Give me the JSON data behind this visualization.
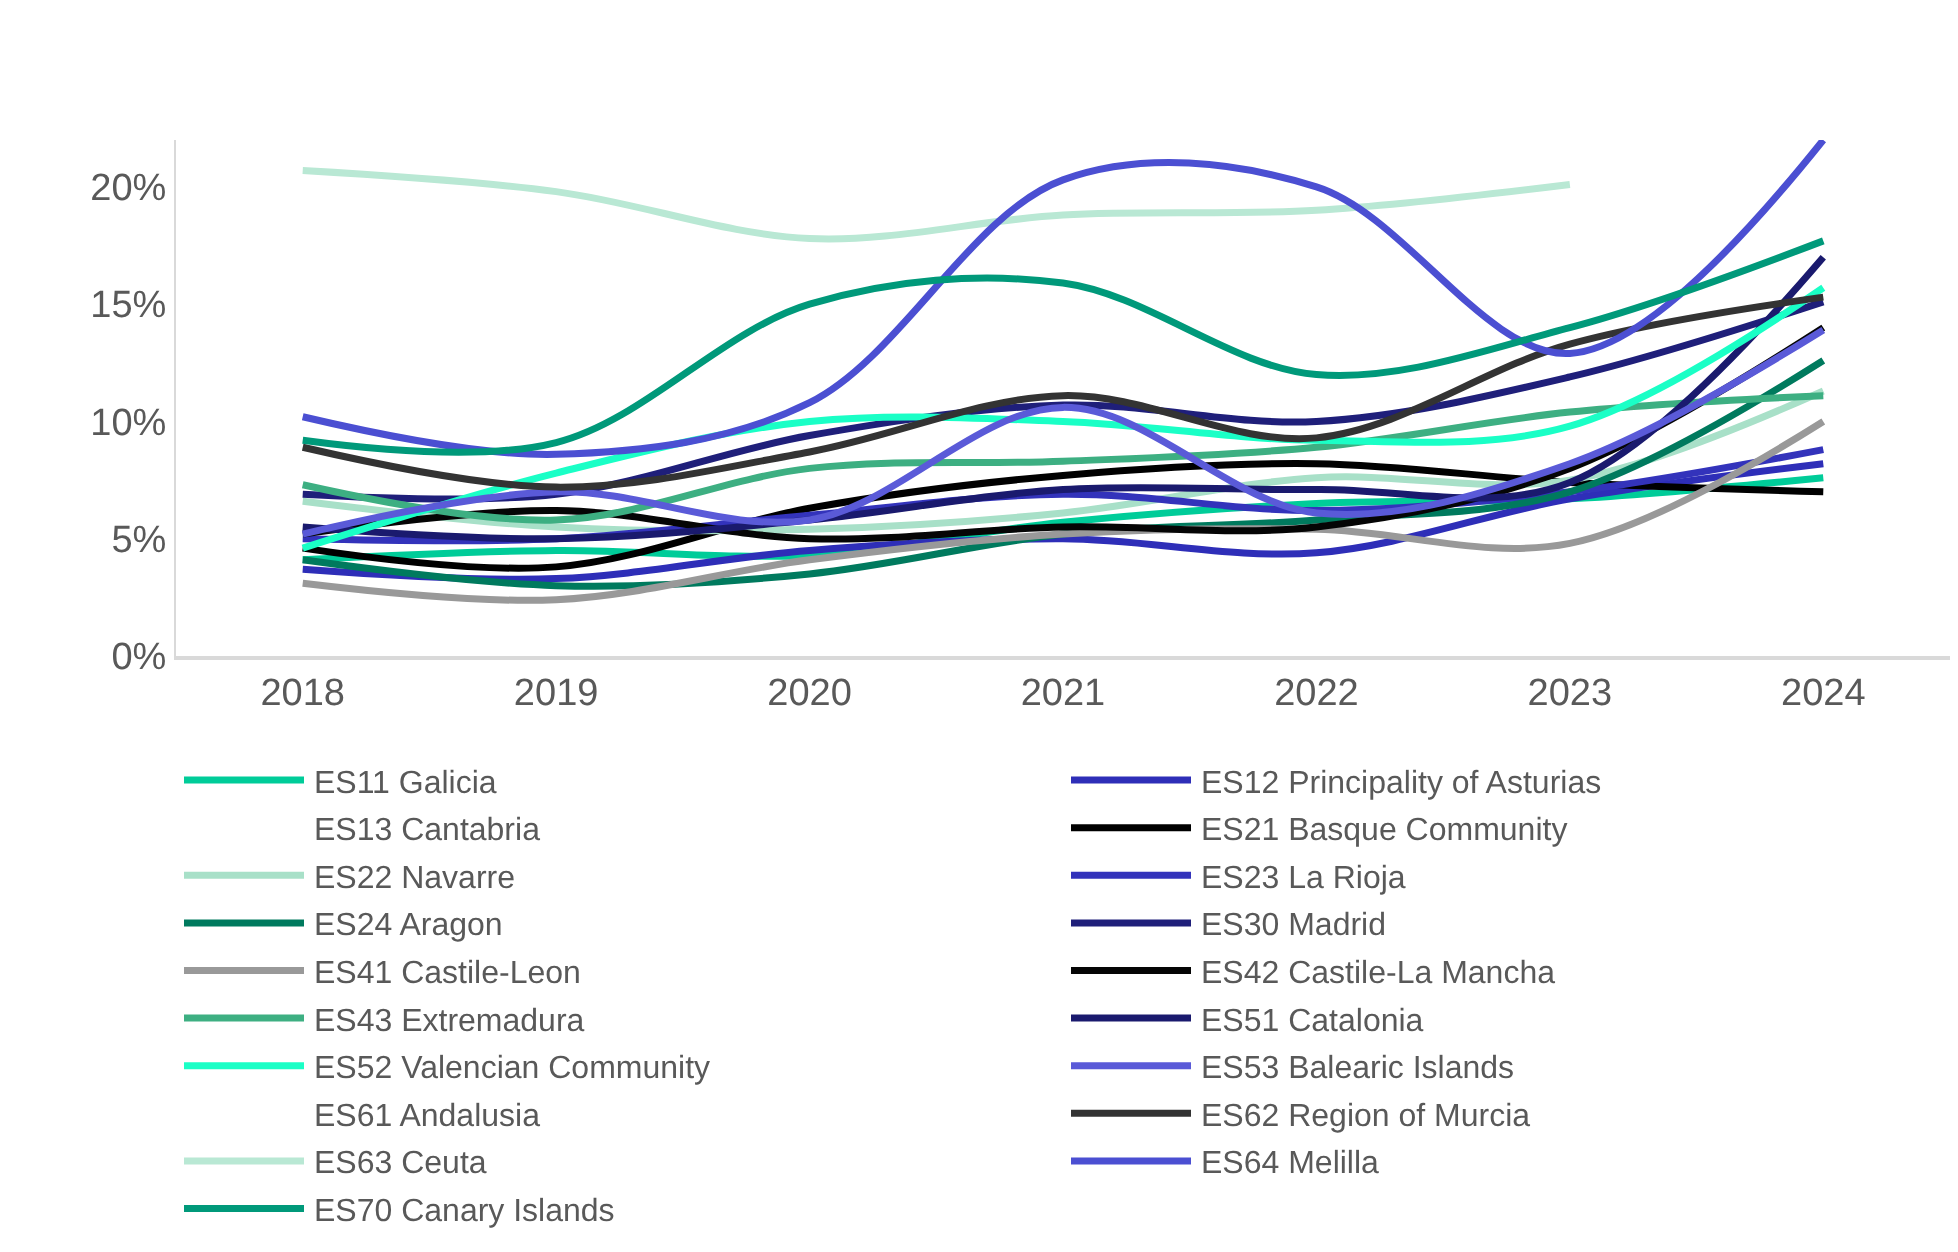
{
  "chart_data": {
    "type": "line",
    "categories": [
      "2018",
      "2019",
      "2020",
      "2021",
      "2022",
      "2023",
      "2024"
    ],
    "ylim": [
      0,
      22
    ],
    "yticks": [
      {
        "value": 0,
        "label": "0%"
      },
      {
        "value": 5,
        "label": "5%"
      },
      {
        "value": 10,
        "label": "10%"
      },
      {
        "value": 15,
        "label": "15%"
      },
      {
        "value": 20,
        "label": "20%"
      }
    ],
    "legend": "bottom",
    "marker": "none",
    "line_style": "solid",
    "series": [
      {
        "name": "ES11 Galicia",
        "color": "#00cc99",
        "values": [
          4.1,
          4.5,
          4.3,
          5.7,
          6.5,
          6.7,
          7.6
        ]
      },
      {
        "name": "ES12 Principality of Asturias",
        "color": "#2e2eb8",
        "values": [
          3.7,
          3.3,
          4.5,
          5.0,
          4.4,
          6.7,
          8.2
        ]
      },
      {
        "name": "ES13 Cantabria",
        "values": [
          null,
          null,
          null,
          null,
          null,
          null,
          null
        ]
      },
      {
        "name": "ES21 Basque Community",
        "color": "#000000",
        "values": [
          4.6,
          3.8,
          6.3,
          7.7,
          8.2,
          7.4,
          7.0
        ]
      },
      {
        "name": "ES22 Navarre",
        "color": "#a8e0c8",
        "values": [
          6.6,
          5.5,
          5.4,
          6.1,
          7.6,
          7.5,
          11.3
        ]
      },
      {
        "name": "ES23 La Rioja",
        "color": "#3333bb",
        "values": [
          5.0,
          5.0,
          6.0,
          6.9,
          6.2,
          7.0,
          8.8
        ]
      },
      {
        "name": "ES24 Aragon",
        "color": "#007a5e",
        "values": [
          4.1,
          3.0,
          3.5,
          5.2,
          5.8,
          7.0,
          12.6
        ]
      },
      {
        "name": "ES30 Madrid",
        "color": "#1f1f7a",
        "values": [
          6.9,
          6.9,
          9.4,
          10.7,
          10.0,
          11.9,
          15.1
        ]
      },
      {
        "name": "ES41 Castile-Leon",
        "color": "#999999",
        "values": [
          3.1,
          2.4,
          4.1,
          5.2,
          5.4,
          4.8,
          10.0
        ]
      },
      {
        "name": "ES42 Castile-La Mancha",
        "color": "#050505",
        "values": [
          5.2,
          6.2,
          5.0,
          5.5,
          5.5,
          8.0,
          14.0
        ]
      },
      {
        "name": "ES43 Extremadura",
        "color": "#3daf82",
        "values": [
          7.3,
          5.8,
          8.0,
          8.3,
          8.9,
          10.4,
          11.1
        ]
      },
      {
        "name": "ES51 Catalonia",
        "color": "#1a1a6e",
        "values": [
          5.5,
          5.0,
          5.8,
          7.1,
          7.1,
          7.4,
          17.0
        ]
      },
      {
        "name": "ES52 Valencian Community",
        "color": "#1affc6",
        "values": [
          4.6,
          7.8,
          10.0,
          10.0,
          9.2,
          9.8,
          15.7
        ]
      },
      {
        "name": "ES53 Balearic Islands",
        "color": "#5a5ad8",
        "values": [
          5.2,
          7.0,
          5.8,
          10.6,
          6.1,
          8.2,
          13.9
        ]
      },
      {
        "name": "ES61 Andalusia",
        "values": [
          null,
          null,
          null,
          null,
          null,
          null,
          null
        ]
      },
      {
        "name": "ES62 Region of Murcia",
        "color": "#333333",
        "values": [
          8.9,
          7.2,
          8.7,
          11.1,
          9.3,
          13.3,
          15.3
        ]
      },
      {
        "name": "ES63 Ceuta",
        "color": "#b9e8d4",
        "values": [
          20.7,
          19.8,
          17.8,
          18.8,
          19.0,
          20.1,
          null
        ]
      },
      {
        "name": "ES64 Melilla",
        "color": "#4b4fd2",
        "values": [
          10.2,
          8.6,
          10.8,
          20.3,
          20.0,
          12.9,
          22.0
        ]
      },
      {
        "name": "ES70 Canary Islands",
        "color": "#00997a",
        "values": [
          9.2,
          9.1,
          15.0,
          15.9,
          12.0,
          14.0,
          17.7
        ]
      }
    ]
  }
}
